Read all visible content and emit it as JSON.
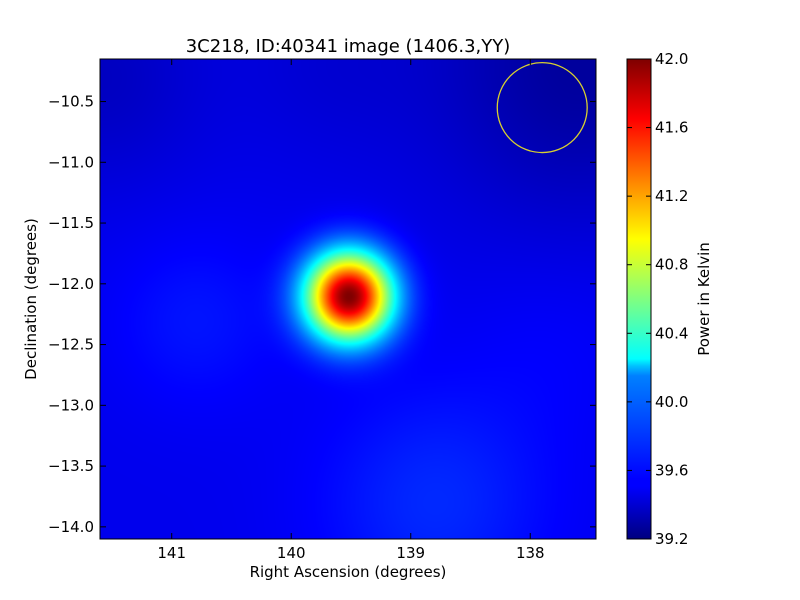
{
  "chart_data": {
    "type": "heatmap",
    "title": "3C218, ID:40341 image (1406.3,YY)",
    "xlabel": "Right Ascension (degrees)",
    "ylabel": "Declination (degrees)",
    "xlim": [
      141.6,
      137.45
    ],
    "ylim": [
      -14.1,
      -10.15
    ],
    "x_ticks": [
      141,
      140,
      139,
      138
    ],
    "x_tick_labels": [
      "141",
      "140",
      "139",
      "138"
    ],
    "y_ticks": [
      -10.5,
      -11.0,
      -11.5,
      -12.0,
      -12.5,
      -13.0,
      -13.5,
      -14.0
    ],
    "y_tick_labels": [
      "−10.5",
      "−11.0",
      "−11.5",
      "−12.0",
      "−12.5",
      "−13.0",
      "−13.5",
      "−14.0"
    ],
    "colorbar": {
      "label": "Power in Kelvin",
      "colormap": "jet",
      "range": [
        39.2,
        42.0
      ],
      "ticks": [
        39.2,
        39.6,
        40.0,
        40.4,
        40.8,
        41.2,
        41.6,
        42.0
      ],
      "tick_labels": [
        "39.2",
        "39.6",
        "40.0",
        "40.4",
        "40.8",
        "41.2",
        "41.6",
        "42.0"
      ]
    },
    "source": {
      "ra": 139.52,
      "dec": -12.1,
      "peak": 42.0
    },
    "background": 39.5,
    "beam_circle": {
      "ra": 137.9,
      "dec": -10.55,
      "radius_deg": 0.37,
      "color": "#d8d030"
    },
    "grid": false
  }
}
